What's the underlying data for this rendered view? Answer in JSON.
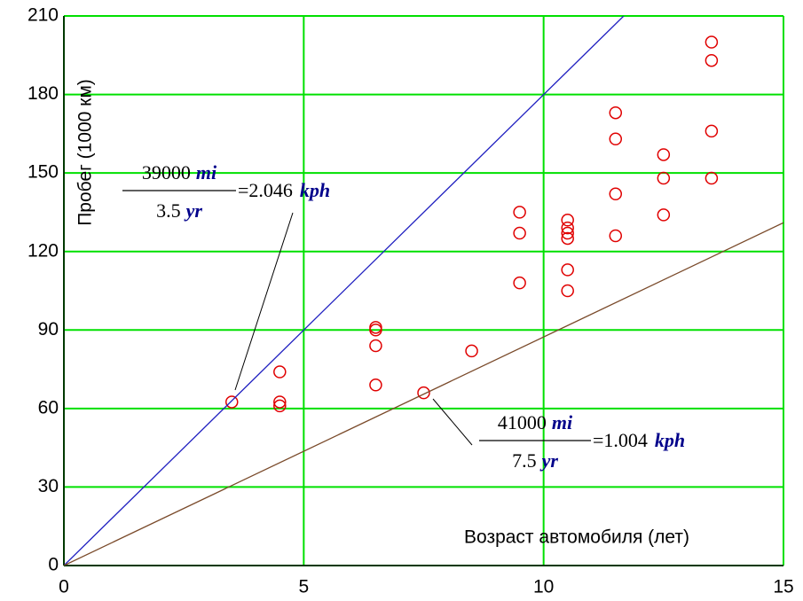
{
  "chart_data": {
    "type": "scatter",
    "x_label": "Возраст автомобиля (лет)",
    "y_label": "Пробег (1000 км)",
    "xlim": [
      0,
      15
    ],
    "ylim": [
      0,
      210
    ],
    "xticks": [
      0,
      5,
      10,
      15
    ],
    "yticks": [
      0,
      30,
      60,
      90,
      120,
      150,
      180,
      210
    ],
    "grid": true,
    "grid_color": "#00e000",
    "series": [
      {
        "type": "scatter",
        "color": "#e00000",
        "x": [
          3.5,
          4.5,
          4.5,
          4.5,
          6.5,
          6.5,
          6.5,
          6.5,
          7.5,
          8.5,
          9.5,
          9.5,
          9.5,
          10.5,
          10.5,
          10.5,
          10.5,
          10.5,
          10.5,
          11.5,
          11.5,
          11.5,
          11.5,
          12.5,
          12.5,
          12.5,
          13.5,
          13.5,
          13.5,
          13.5
        ],
        "values": [
          62.5,
          74,
          62.5,
          61,
          91,
          90,
          84,
          69,
          66,
          82,
          135,
          127,
          108,
          132,
          129,
          127,
          125,
          113,
          105,
          173,
          163,
          142,
          126,
          157,
          148,
          134,
          200,
          193,
          166,
          148
        ]
      },
      {
        "type": "line",
        "color": "#2020c0",
        "x": [
          0,
          11.67
        ],
        "values": [
          0,
          210
        ]
      },
      {
        "type": "line",
        "color": "#7a4a2a",
        "x": [
          0,
          15
        ],
        "values": [
          0,
          131
        ]
      }
    ],
    "annotations": [
      {
        "numerator": "39000",
        "numerator_unit": "mi",
        "denominator": "3.5",
        "denominator_unit": "yr",
        "result": "=2.046",
        "result_unit": "kph"
      },
      {
        "numerator": "41000",
        "numerator_unit": "mi",
        "denominator": "7.5",
        "denominator_unit": "yr",
        "result": "=1.004",
        "result_unit": "kph"
      }
    ]
  }
}
